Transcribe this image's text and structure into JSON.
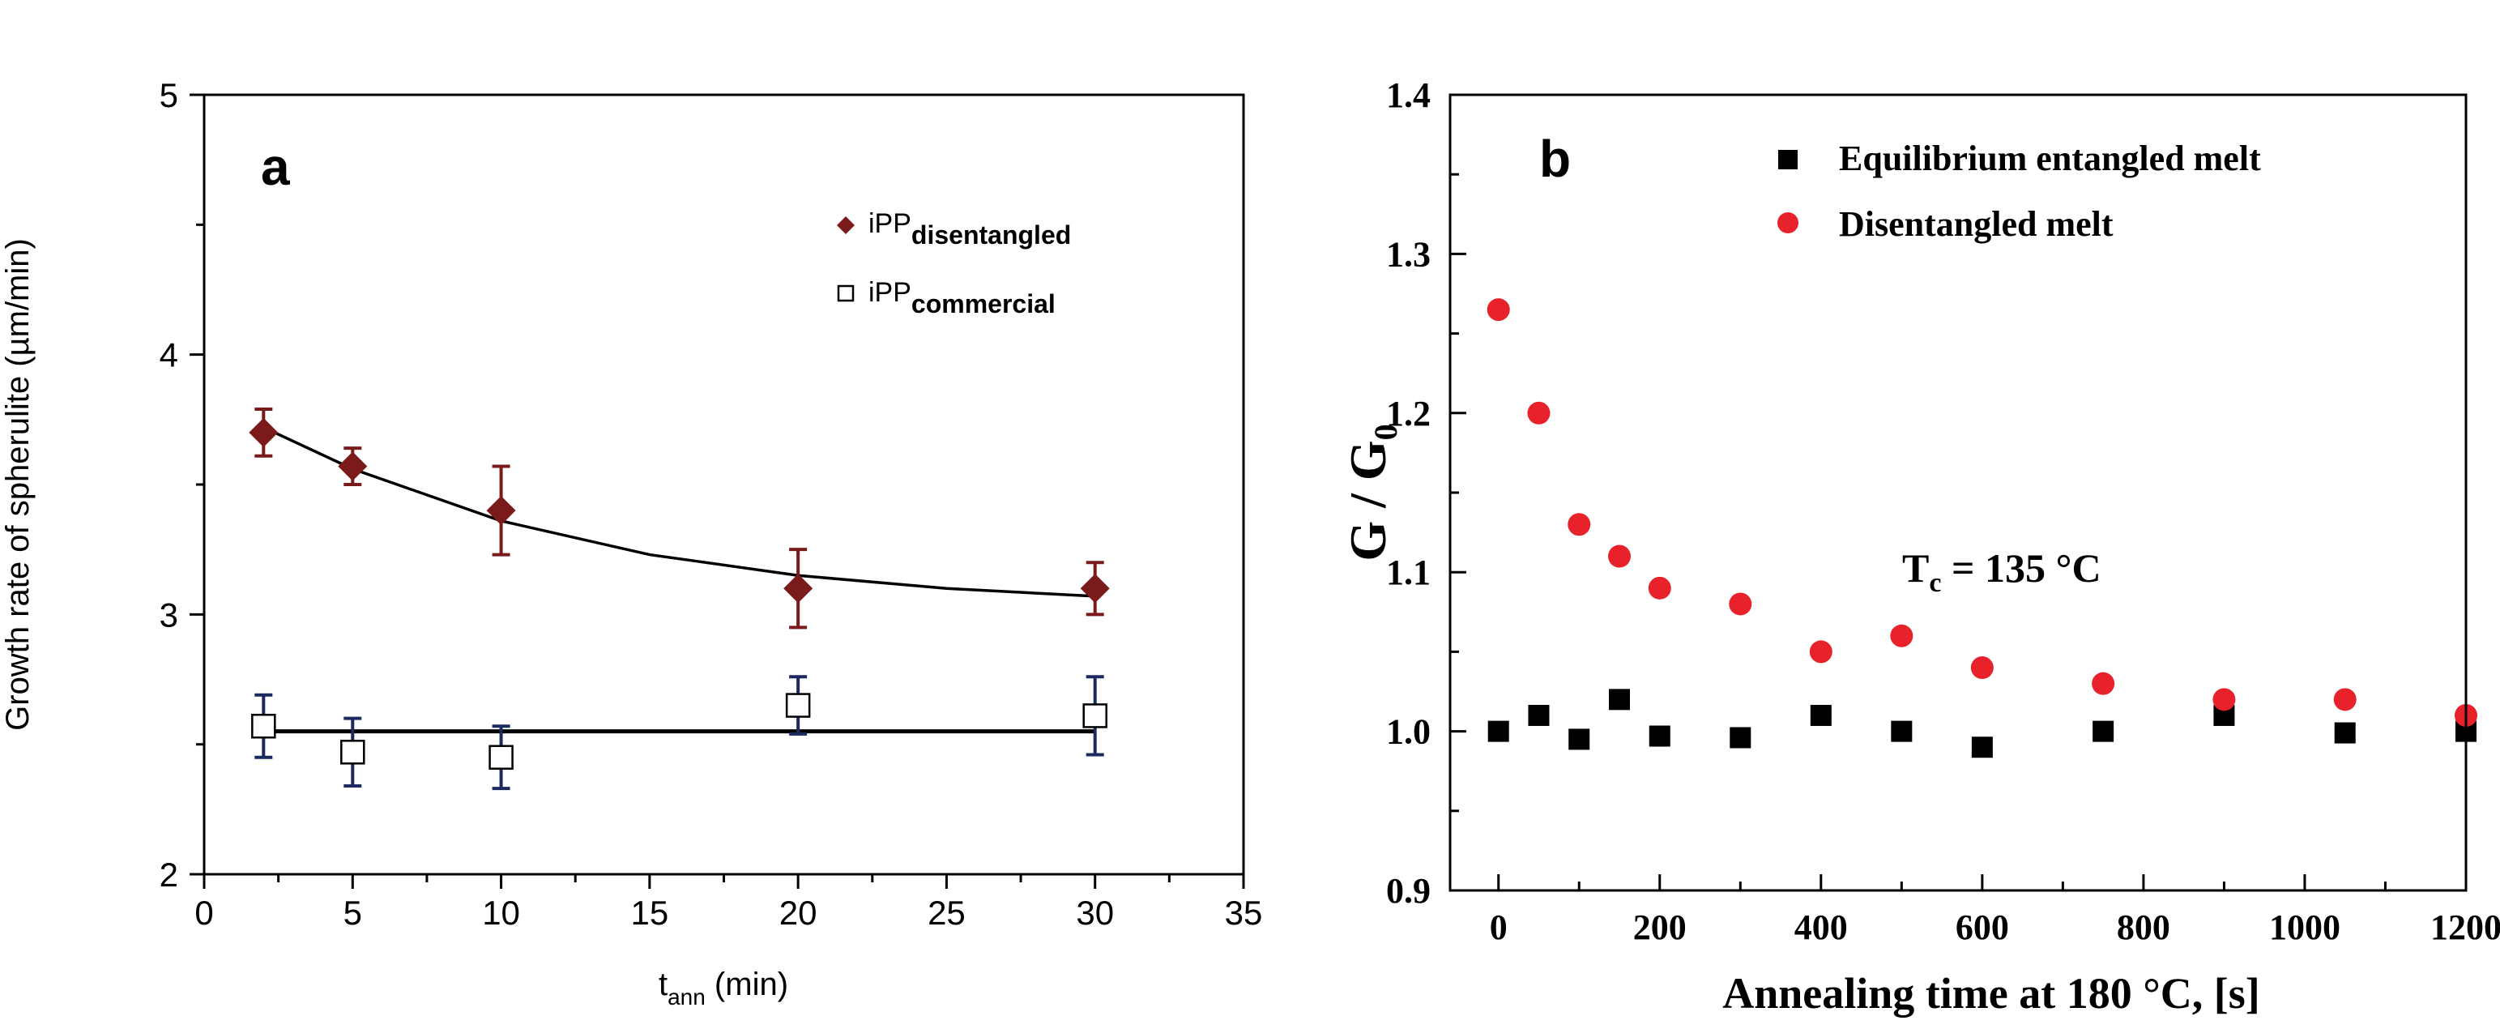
{
  "chart_data": [
    {
      "type": "scatter",
      "panel_label": "a",
      "xlabel_main": "t",
      "xlabel_sub": "ann",
      "xlabel_unit": " (min)",
      "ylabel": "Growth rate of spherulite (µm/min)",
      "xlim": [
        0,
        35
      ],
      "ylim": [
        2,
        5
      ],
      "xticks": [
        0,
        5,
        10,
        15,
        20,
        25,
        30,
        35
      ],
      "yticks": [
        2,
        3,
        4,
        5
      ],
      "grid": false,
      "legend_position": "top-right",
      "series": [
        {
          "legend_main": "iPP",
          "legend_sub": "disentangled",
          "marker": "filled-diamond",
          "color": "#7b1a1a",
          "x": [
            2,
            5,
            10,
            20,
            30
          ],
          "y": [
            3.7,
            3.57,
            3.4,
            3.1,
            3.1
          ],
          "yerr": [
            0.09,
            0.07,
            0.17,
            0.15,
            0.1
          ],
          "fit": "exponential-decay"
        },
        {
          "legend_main": "iPP",
          "legend_sub": "commercial",
          "marker": "open-square",
          "color": "#1a2a5e",
          "x": [
            2,
            5,
            10,
            20,
            30
          ],
          "y": [
            2.57,
            2.47,
            2.45,
            2.65,
            2.61
          ],
          "yerr": [
            0.12,
            0.13,
            0.12,
            0.11,
            0.15
          ],
          "fit": "constant"
        }
      ],
      "fit_lines": [
        {
          "x": [
            2,
            5,
            10,
            15,
            20,
            25,
            30
          ],
          "y": [
            3.72,
            3.56,
            3.36,
            3.23,
            3.15,
            3.1,
            3.07
          ]
        },
        {
          "x": [
            2,
            30
          ],
          "y": [
            2.55,
            2.55
          ]
        }
      ]
    },
    {
      "type": "scatter",
      "panel_label": "b",
      "xlabel": "Annealing time at 180 °C, [s]",
      "ylabel_main": "G / G",
      "ylabel_sub": "0",
      "xlim": [
        -60,
        1200
      ],
      "ylim": [
        0.9,
        1.4
      ],
      "xticks": [
        0,
        200,
        400,
        600,
        800,
        1000,
        1200
      ],
      "yticks": [
        0.9,
        1.0,
        1.1,
        1.2,
        1.3,
        1.4
      ],
      "grid": false,
      "legend_position": "top-right",
      "annotation_main": "T",
      "annotation_sub": "c",
      "annotation_rest": " = 135 °C",
      "series": [
        {
          "name": "Equilibrium entangled melt",
          "marker": "filled-square",
          "color": "#000000",
          "x": [
            0,
            50,
            100,
            150,
            200,
            300,
            400,
            500,
            600,
            750,
            900,
            1050,
            1200
          ],
          "y": [
            1.0,
            1.01,
            0.995,
            1.02,
            0.997,
            0.996,
            1.01,
            1.0,
            0.99,
            1.0,
            1.01,
            0.999,
            1.0
          ]
        },
        {
          "name": "Disentangled melt",
          "marker": "filled-circle",
          "color": "#e8222a",
          "x": [
            0,
            50,
            100,
            150,
            200,
            300,
            400,
            500,
            600,
            750,
            900,
            1050,
            1200
          ],
          "y": [
            1.265,
            1.2,
            1.13,
            1.11,
            1.09,
            1.08,
            1.05,
            1.06,
            1.04,
            1.03,
            1.02,
            1.02,
            1.01
          ]
        }
      ]
    }
  ]
}
